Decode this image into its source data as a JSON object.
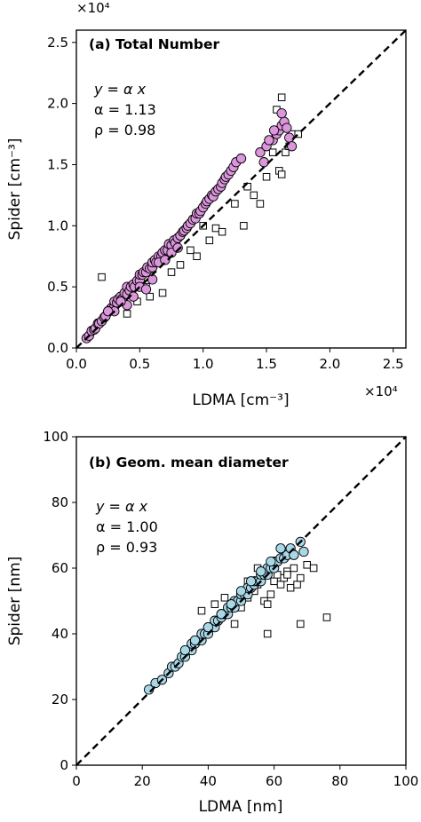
{
  "chart_data": [
    {
      "type": "scatter",
      "title": "(a) Total Number",
      "xlabel": "LDMA [cm⁻³]",
      "ylabel": "Spider [cm⁻³]",
      "x_multiplier": "×10⁴",
      "y_multiplier": "×10⁴",
      "xlim": [
        0,
        2.6
      ],
      "ylim": [
        0,
        2.6
      ],
      "x_ticks": [
        0,
        0.5,
        1.0,
        1.5,
        2.0,
        2.5
      ],
      "y_ticks": [
        0,
        0.5,
        1.0,
        1.5,
        2.0,
        2.5
      ],
      "x_tick_labels": [
        "0.0",
        "0.5",
        "1.0",
        "1.5",
        "2.0",
        "2.5"
      ],
      "y_tick_labels": [
        "0.0",
        "0.5",
        "1.0",
        "1.5",
        "2.0",
        "2.5"
      ],
      "annotation": [
        "y = α x",
        "α = 1.13",
        "ρ = 0.98"
      ],
      "fit_line": {
        "slope": 1,
        "style": "dashed"
      },
      "point_color": "#dc96dc",
      "series": [
        {
          "marker": "circle",
          "color": "#dc96dc",
          "x": [
            0.08,
            0.1,
            0.12,
            0.14,
            0.15,
            0.17,
            0.18,
            0.2,
            0.22,
            0.23,
            0.25,
            0.27,
            0.28,
            0.3,
            0.3,
            0.32,
            0.33,
            0.35,
            0.36,
            0.38,
            0.4,
            0.4,
            0.42,
            0.43,
            0.45,
            0.46,
            0.48,
            0.5,
            0.5,
            0.52,
            0.53,
            0.55,
            0.56,
            0.58,
            0.6,
            0.6,
            0.62,
            0.63,
            0.65,
            0.67,
            0.68,
            0.7,
            0.72,
            0.73,
            0.75,
            0.77,
            0.78,
            0.8,
            0.82,
            0.84,
            0.85,
            0.87,
            0.88,
            0.9,
            0.92,
            0.94,
            0.95,
            0.97,
            0.98,
            1.0,
            1.02,
            1.03,
            1.05,
            1.07,
            1.08,
            1.1,
            1.12,
            1.14,
            1.15,
            1.17,
            1.18,
            1.2,
            1.22,
            1.24,
            1.26,
            1.3,
            0.4,
            0.45,
            0.5,
            0.55,
            0.6,
            0.35,
            0.3,
            0.25,
            0.65,
            0.7,
            0.75,
            0.8,
            1.45,
            1.5,
            1.55,
            1.58,
            1.6,
            1.62,
            1.64,
            1.66,
            1.68,
            1.56,
            1.62,
            1.7,
            1.48,
            1.52
          ],
          "y": [
            0.08,
            0.1,
            0.14,
            0.15,
            0.16,
            0.2,
            0.2,
            0.22,
            0.25,
            0.26,
            0.3,
            0.32,
            0.33,
            0.34,
            0.38,
            0.37,
            0.4,
            0.42,
            0.4,
            0.45,
            0.44,
            0.5,
            0.47,
            0.5,
            0.52,
            0.5,
            0.55,
            0.55,
            0.6,
            0.6,
            0.62,
            0.62,
            0.66,
            0.65,
            0.66,
            0.7,
            0.72,
            0.7,
            0.75,
            0.75,
            0.78,
            0.8,
            0.8,
            0.85,
            0.84,
            0.88,
            0.86,
            0.9,
            0.92,
            0.95,
            0.96,
            0.98,
            1.0,
            1.02,
            1.05,
            1.06,
            1.1,
            1.1,
            1.12,
            1.15,
            1.18,
            1.2,
            1.22,
            1.25,
            1.24,
            1.28,
            1.3,
            1.32,
            1.35,
            1.38,
            1.4,
            1.42,
            1.45,
            1.48,
            1.52,
            1.55,
            0.35,
            0.42,
            0.5,
            0.48,
            0.56,
            0.38,
            0.3,
            0.3,
            0.7,
            0.72,
            0.78,
            0.82,
            1.6,
            1.65,
            1.7,
            1.75,
            1.78,
            1.82,
            1.85,
            1.8,
            1.72,
            1.78,
            1.92,
            1.65,
            1.52,
            1.7
          ]
        },
        {
          "marker": "square",
          "color": "#ffffff",
          "x": [
            0.2,
            0.4,
            0.48,
            0.58,
            0.68,
            0.82,
            0.9,
            1.0,
            1.1,
            1.15,
            1.25,
            1.35,
            1.4,
            1.45,
            1.5,
            1.55,
            1.6,
            1.62,
            1.65,
            1.7,
            1.75,
            1.62,
            1.68,
            1.58,
            1.32,
            1.05,
            0.75,
            0.55,
            0.3,
            0.95
          ],
          "y": [
            0.58,
            0.28,
            0.38,
            0.42,
            0.45,
            0.68,
            0.8,
            1.0,
            0.98,
            0.95,
            1.18,
            1.32,
            1.25,
            1.18,
            1.4,
            1.6,
            1.45,
            1.42,
            1.6,
            1.75,
            1.75,
            2.05,
            1.65,
            1.95,
            1.0,
            0.88,
            0.62,
            0.5,
            0.32,
            0.75
          ]
        }
      ]
    },
    {
      "type": "scatter",
      "title": "(b) Geom. mean diameter",
      "xlabel": "LDMA [nm]",
      "ylabel": "Spider [nm]",
      "xlim": [
        0,
        100
      ],
      "ylim": [
        0,
        100
      ],
      "x_ticks": [
        0,
        20,
        40,
        60,
        80,
        100
      ],
      "y_ticks": [
        0,
        20,
        40,
        60,
        80,
        100
      ],
      "x_tick_labels": [
        "0",
        "20",
        "40",
        "60",
        "80",
        "100"
      ],
      "y_tick_labels": [
        "0",
        "20",
        "40",
        "60",
        "80",
        "100"
      ],
      "annotation": [
        "y = α x",
        "α = 1.00",
        "ρ = 0.93"
      ],
      "fit_line": {
        "slope": 1,
        "style": "dashed"
      },
      "point_color": "#a8d8e8",
      "series": [
        {
          "marker": "circle",
          "color": "#a8d8e8",
          "x": [
            22,
            24,
            26,
            28,
            29,
            30,
            31,
            32,
            33,
            34,
            35,
            35,
            36,
            37,
            38,
            38,
            39,
            40,
            40,
            41,
            42,
            42,
            43,
            44,
            44,
            45,
            46,
            46,
            47,
            48,
            48,
            49,
            50,
            50,
            51,
            52,
            52,
            53,
            54,
            54,
            55,
            56,
            56,
            57,
            58,
            58,
            59,
            60,
            60,
            61,
            62,
            63,
            64,
            65,
            66,
            68,
            69,
            33,
            36,
            40,
            44,
            47,
            50,
            53,
            56,
            59,
            62
          ],
          "y": [
            23,
            25,
            26,
            28,
            30,
            30,
            31,
            33,
            33,
            35,
            35,
            37,
            37,
            38,
            38,
            40,
            40,
            40,
            42,
            42,
            42,
            44,
            44,
            45,
            46,
            46,
            46,
            48,
            48,
            48,
            50,
            50,
            50,
            52,
            52,
            52,
            54,
            54,
            55,
            56,
            56,
            56,
            58,
            58,
            58,
            60,
            60,
            60,
            62,
            62,
            63,
            63,
            64,
            66,
            64,
            68,
            65,
            35,
            38,
            42,
            46,
            49,
            53,
            56,
            59,
            62,
            66
          ]
        },
        {
          "marker": "square",
          "color": "#ffffff",
          "x": [
            38,
            42,
            45,
            48,
            50,
            52,
            54,
            55,
            56,
            57,
            58,
            59,
            60,
            61,
            62,
            63,
            64,
            65,
            66,
            67,
            68,
            70,
            72,
            68,
            76,
            58,
            52,
            60,
            55,
            64
          ],
          "y": [
            47,
            49,
            51,
            43,
            48,
            51,
            53,
            55,
            57,
            50,
            49,
            52,
            56,
            58,
            55,
            57,
            59,
            54,
            60,
            55,
            57,
            61,
            60,
            43,
            45,
            40,
            56,
            61,
            60,
            58
          ]
        }
      ]
    }
  ]
}
